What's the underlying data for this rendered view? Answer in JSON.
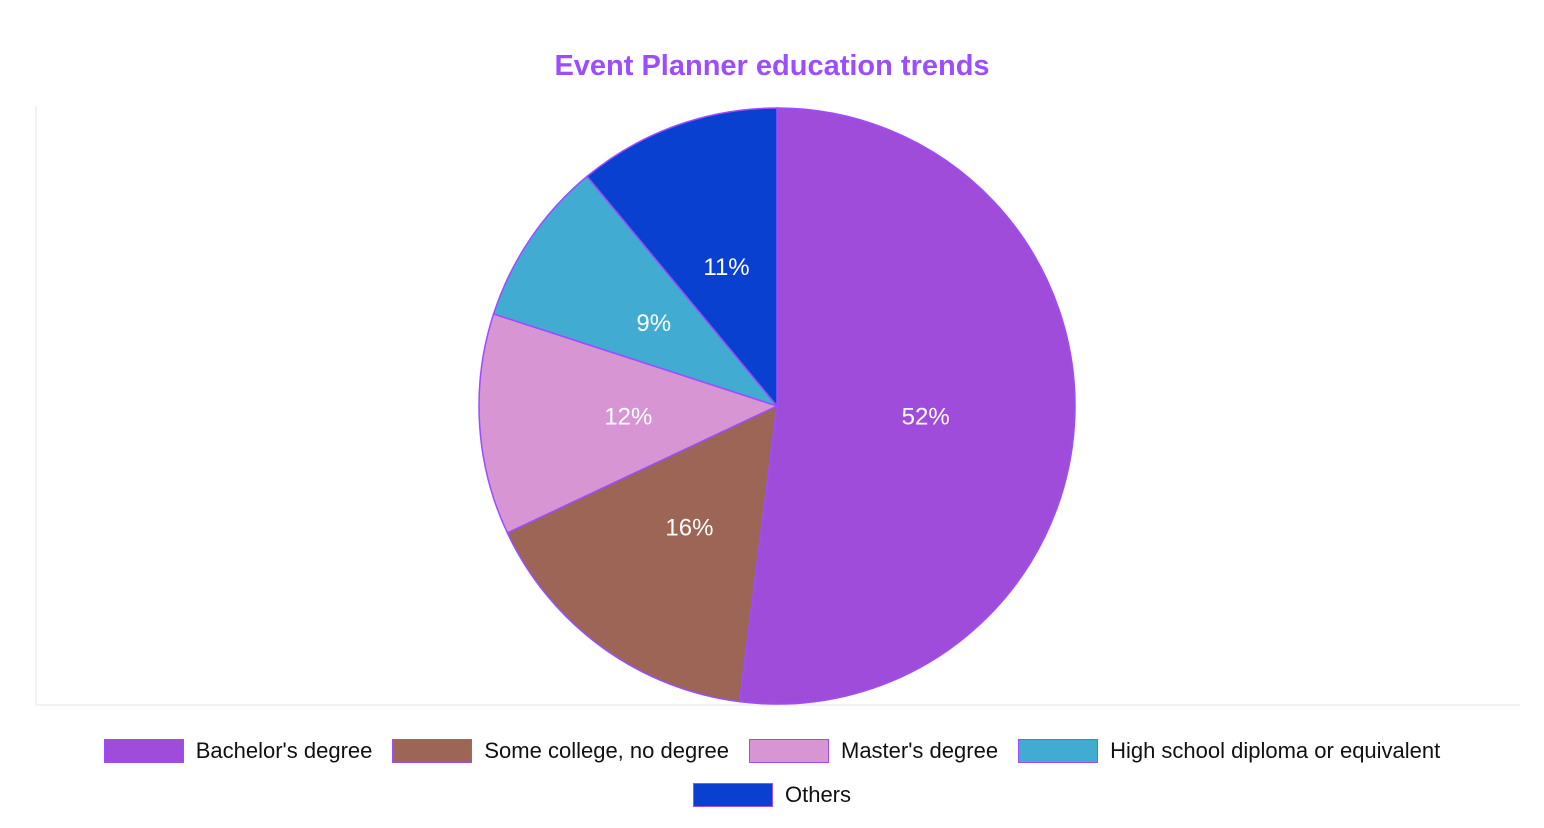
{
  "chart_data": {
    "type": "pie",
    "title": "Event Planner education trends",
    "categories": [
      "Bachelor's degree",
      "Some college, no degree",
      "Master's degree",
      "High school diploma or equivalent",
      "Others"
    ],
    "values": [
      52,
      16,
      12,
      9,
      11
    ],
    "value_labels": [
      "52%",
      "16%",
      "12%",
      "9%",
      "11%"
    ],
    "colors": [
      "#a04cdb",
      "#9c6556",
      "#d795d3",
      "#42abd1",
      "#0a40cf"
    ],
    "legend": "bottom"
  },
  "style": {
    "title_color": "#9b4dff",
    "slice_border_color": "#9b4dff",
    "axis_color": "#e5e5e5"
  }
}
